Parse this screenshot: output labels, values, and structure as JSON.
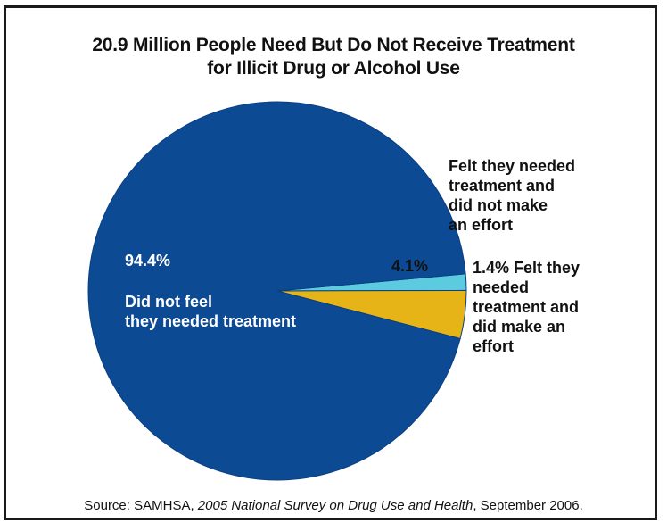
{
  "chart_data": {
    "type": "pie",
    "title_lines": [
      "20.9 Million People Need But Do Not Receive Treatment",
      "for Illicit Drug or Alcohol Use"
    ],
    "slices": [
      {
        "value": 94.4,
        "value_label": "94.4%",
        "label_lines": [
          "Did not feel",
          "they needed treatment"
        ],
        "color": "#0d4a94"
      },
      {
        "value": 4.1,
        "value_label": "4.1%",
        "label_lines": [
          "Felt they needed",
          "treatment and",
          "did not make",
          "an effort"
        ],
        "color": "#e6b417"
      },
      {
        "value": 1.4,
        "value_label": "1.4%",
        "label_lines": [
          "Felt they",
          "needed",
          "treatment and",
          "did make an",
          "effort"
        ],
        "color": "#5ccbe0"
      }
    ]
  },
  "source": {
    "prefix": "Source: SAMHSA, ",
    "publication": "2005 National Survey on Drug Use and Health",
    "suffix": ", September 2006."
  }
}
